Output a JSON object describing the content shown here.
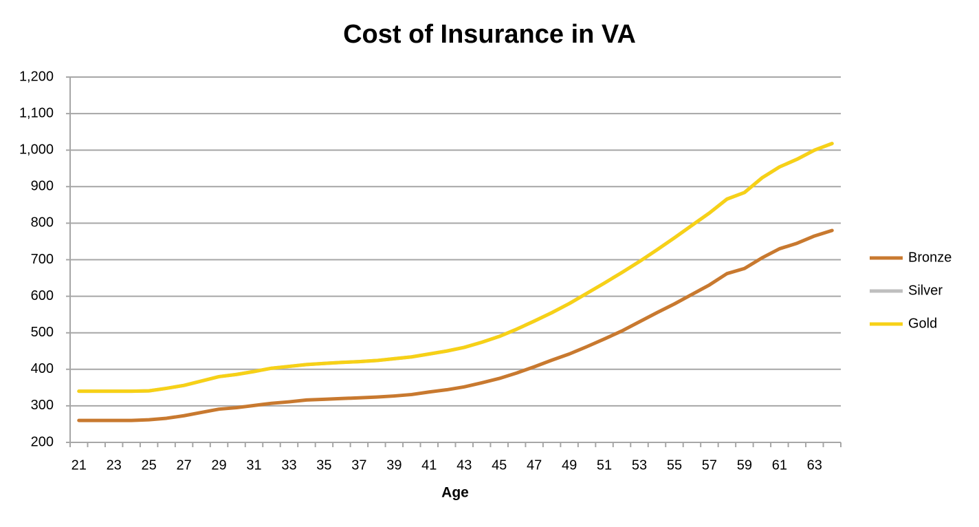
{
  "chart_data": {
    "type": "line",
    "title": "Cost of Insurance in VA",
    "x_label": "Age",
    "categories": [
      "21",
      null,
      "23",
      null,
      "25",
      null,
      "27",
      null,
      "29",
      null,
      "31",
      null,
      "33",
      null,
      "35",
      null,
      "37",
      null,
      "39",
      null,
      "41",
      null,
      "43",
      null,
      "45",
      null,
      "47",
      null,
      "49",
      null,
      "51",
      null,
      "53",
      null,
      "55",
      null,
      "57",
      null,
      "59",
      null,
      "61",
      null,
      "63",
      null
    ],
    "series": [
      {
        "name": "Bronze",
        "color": "#c8792f",
        "values": [
          260,
          260,
          260,
          260,
          262,
          266,
          273,
          282,
          291,
          295,
          301,
          307,
          311,
          316,
          318,
          320,
          322,
          324,
          327,
          331,
          338,
          344,
          352,
          363,
          375,
          390,
          407,
          425,
          442,
          462,
          483,
          505,
          530,
          555,
          579,
          605,
          631,
          662,
          676,
          705,
          730,
          745,
          765,
          780
        ]
      },
      {
        "name": "Silver",
        "color": "#bfbfbf",
        "values": [
          340,
          340,
          340,
          340,
          341,
          348,
          356,
          368,
          380,
          386,
          394,
          403,
          408,
          413,
          416,
          419,
          421,
          424,
          429,
          434,
          442,
          450,
          460,
          474,
          490,
          510,
          532,
          555,
          580,
          608,
          636,
          665,
          695,
          727,
          760,
          794,
          828,
          866,
          884,
          924,
          954,
          975,
          1000,
          1018
        ]
      },
      {
        "name": "Gold",
        "color": "#f7d117",
        "values": [
          340,
          340,
          340,
          340,
          341,
          348,
          356,
          368,
          380,
          386,
          394,
          403,
          408,
          413,
          416,
          419,
          421,
          424,
          429,
          434,
          442,
          450,
          460,
          474,
          490,
          510,
          532,
          555,
          580,
          608,
          636,
          665,
          695,
          727,
          760,
          794,
          828,
          866,
          884,
          924,
          954,
          975,
          1000,
          1018
        ]
      }
    ],
    "ylim": [
      200,
      1200
    ],
    "yticks": [
      200,
      300,
      400,
      500,
      600,
      700,
      800,
      900,
      {
        "value": 1000,
        "label": "1,000"
      },
      {
        "value": 1100,
        "label": "1,100"
      },
      {
        "value": 1200,
        "label": "1,200"
      }
    ],
    "grid": true,
    "legend": "right"
  }
}
